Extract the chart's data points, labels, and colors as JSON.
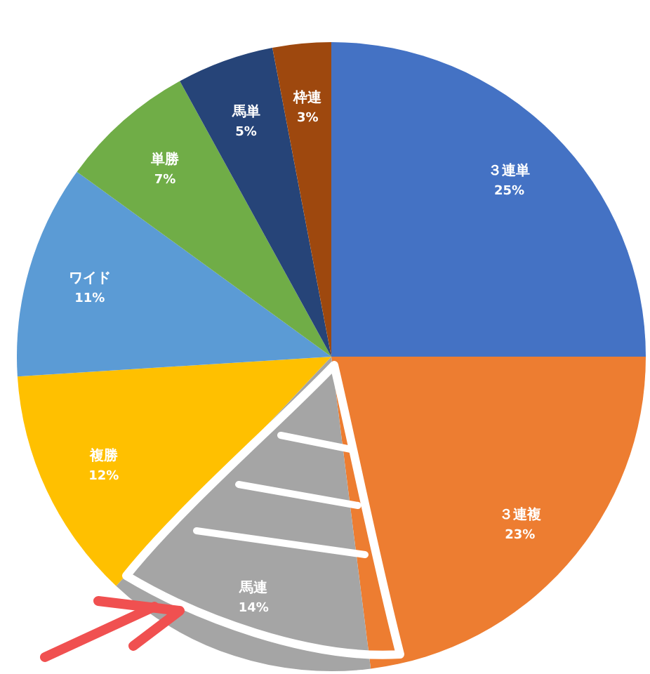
{
  "chart_data": {
    "type": "pie",
    "categories": [
      "３連単",
      "３連複",
      "馬連",
      "複勝",
      "ワイド",
      "単勝",
      "馬単",
      "枠連"
    ],
    "values": [
      25,
      23,
      14,
      12,
      11,
      7,
      5,
      3
    ],
    "colors": [
      "#4472c4",
      "#ed7d31",
      "#a5a5a5",
      "#ffc000",
      "#5b9bd5",
      "#70ad47",
      "#264478",
      "#9e480e"
    ],
    "value_labels": [
      "25%",
      "23%",
      "14%",
      "12%",
      "11%",
      "7%",
      "5%",
      "3%"
    ]
  }
}
